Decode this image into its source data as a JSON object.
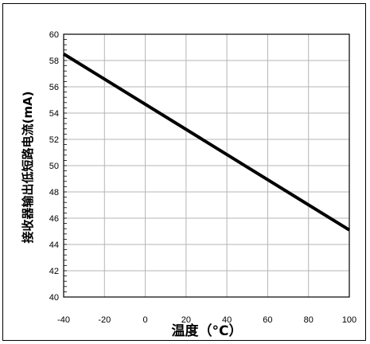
{
  "chart_data": {
    "type": "line",
    "title": "",
    "xlabel": "温度（°C）",
    "ylabel": "接收器输出低短路电流(mA)",
    "xlim": [
      -40,
      100
    ],
    "ylim": [
      40,
      60
    ],
    "x_ticks": [
      -40,
      -20,
      0,
      20,
      40,
      60,
      80,
      100
    ],
    "y_ticks": [
      40,
      42,
      44,
      46,
      48,
      50,
      52,
      54,
      56,
      58,
      60
    ],
    "grid": true,
    "legend": "none",
    "series": [
      {
        "x": [
          -40,
          100
        ],
        "y": [
          58.5,
          45.1
        ],
        "color": "#000000"
      }
    ]
  }
}
